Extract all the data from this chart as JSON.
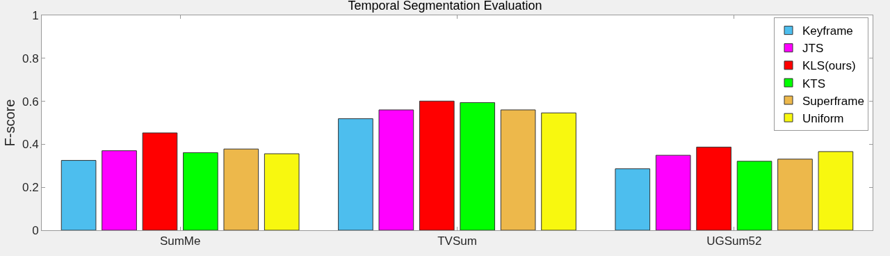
{
  "chart_data": {
    "type": "bar",
    "title": "Temporal Segmentation Evaluation",
    "ylabel": "F-score",
    "categories": [
      "SumMe",
      "TVSum",
      "UGSum52"
    ],
    "series": [
      {
        "name": "Keyframe",
        "color": "#4dbeee",
        "values": [
          0.325,
          0.519,
          0.286
        ]
      },
      {
        "name": "JTS",
        "color": "#ff00ff",
        "values": [
          0.37,
          0.56,
          0.349
        ]
      },
      {
        "name": "KLS(ours)",
        "color": "#ff0000",
        "values": [
          0.453,
          0.601,
          0.387
        ]
      },
      {
        "name": "KTS",
        "color": "#00ff00",
        "values": [
          0.361,
          0.594,
          0.321
        ]
      },
      {
        "name": "Superframe",
        "color": "#edb84b",
        "values": [
          0.378,
          0.56,
          0.331
        ]
      },
      {
        "name": "Uniform",
        "color": "#f8f80f",
        "values": [
          0.356,
          0.546,
          0.366
        ]
      }
    ],
    "ylim": [
      0,
      1
    ],
    "yticks": [
      0,
      0.2,
      0.4,
      0.6,
      0.8,
      1
    ],
    "legend": "top right"
  }
}
